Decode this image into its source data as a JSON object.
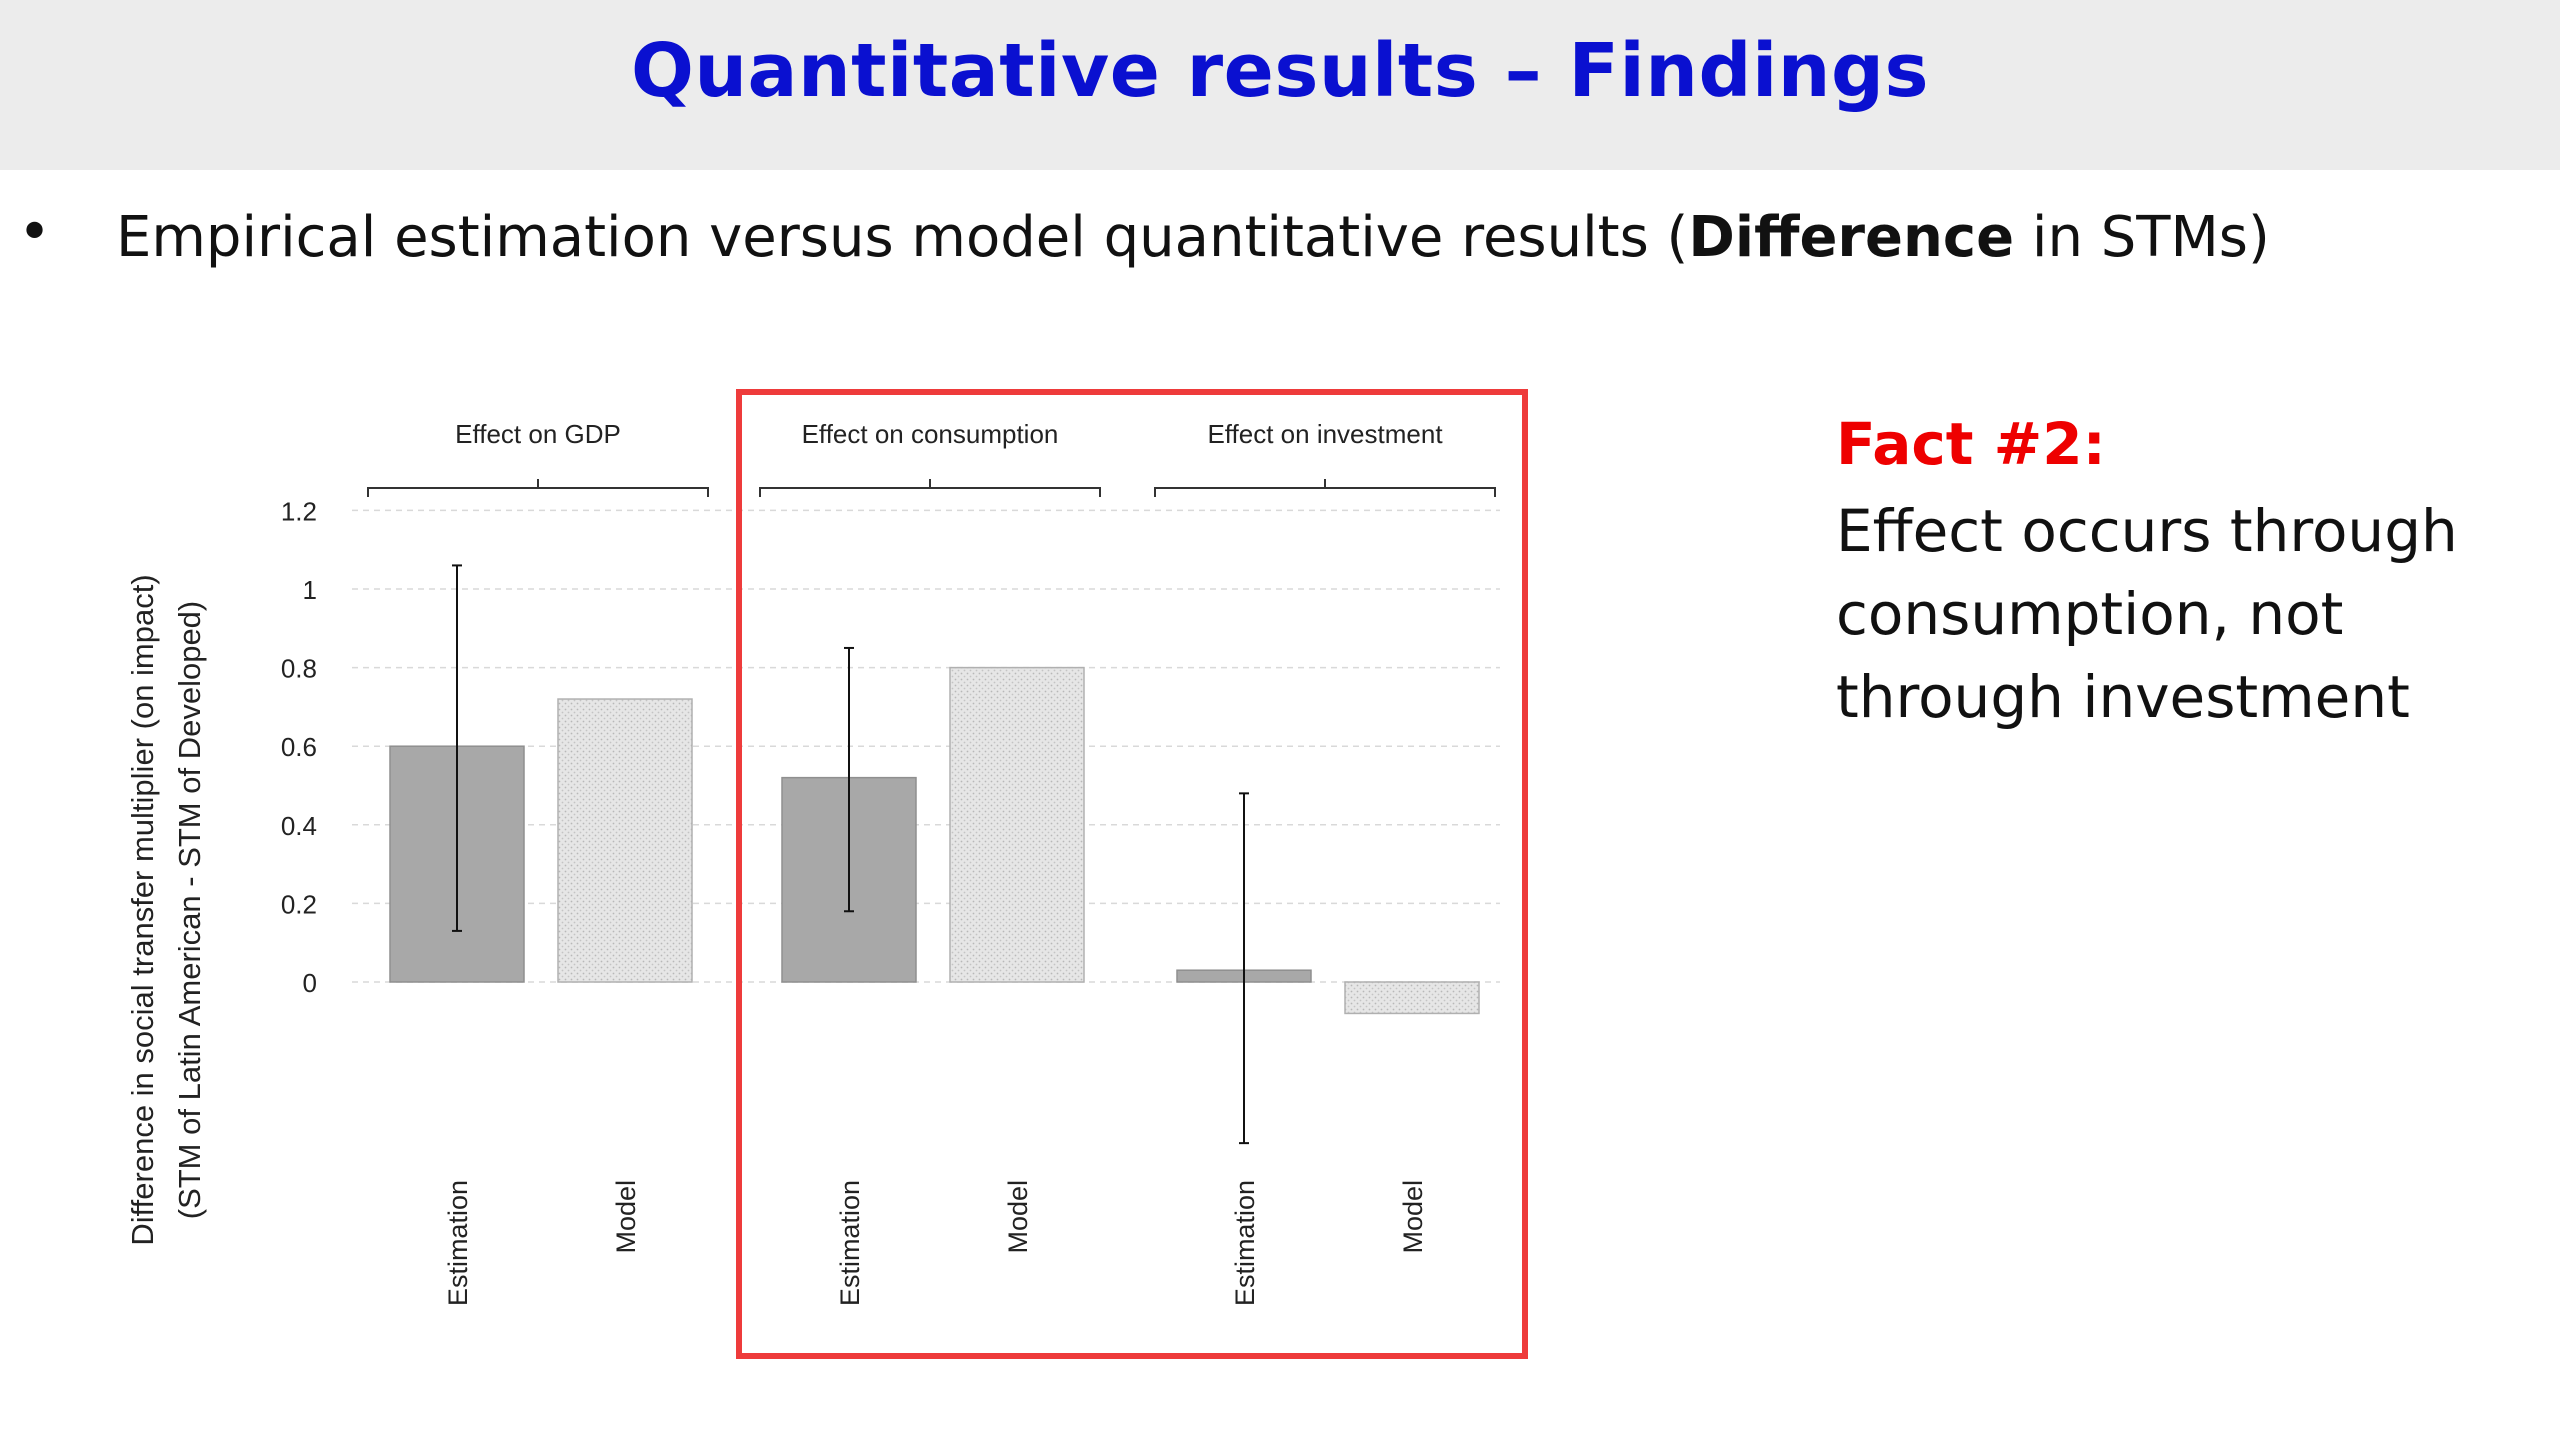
{
  "slide": {
    "title": "Quantitative results – Findings",
    "bullet_symbol": "•",
    "bullet_pre": "Empirical estimation versus model quantitative results (",
    "bullet_bold": "Difference",
    "bullet_post": " in STMs)",
    "fact_title": "Fact #2:",
    "fact_body": "Effect occurs through consumption, not through investment"
  },
  "colors": {
    "title": "#0a10d0",
    "fact_title": "#ee0000",
    "highlight_box": "#ee3b3b",
    "estimation_bar": "#a8a8a8",
    "model_bar": "#e2e2e2"
  },
  "chart_data": {
    "type": "bar",
    "ylabel_line1": "Difference in social transfer multiplier (on impact)",
    "ylabel_line2": "(STM of Latin American  - STM of Developed)",
    "ylim": [
      -0.4,
      1.2
    ],
    "yticks": [
      0,
      0.2,
      0.4,
      0.6,
      0.8,
      1,
      1.2
    ],
    "ytick_labels": [
      "0",
      "0.2",
      "0.4",
      "0.6",
      "0.8",
      "1",
      "1.2"
    ],
    "grid": true,
    "groups": [
      {
        "label": "Effect on GDP",
        "highlighted": false,
        "bars": [
          {
            "label": "Estimation",
            "kind": "estimation",
            "value": 0.6,
            "err_low": 0.13,
            "err_high": 1.06
          },
          {
            "label": "Model",
            "kind": "model",
            "value": 0.72
          }
        ]
      },
      {
        "label": "Effect on consumption",
        "highlighted": true,
        "bars": [
          {
            "label": "Estimation",
            "kind": "estimation",
            "value": 0.52,
            "err_low": 0.18,
            "err_high": 0.85
          },
          {
            "label": "Model",
            "kind": "model",
            "value": 0.8
          }
        ]
      },
      {
        "label": "Effect on investment",
        "highlighted": true,
        "bars": [
          {
            "label": "Estimation",
            "kind": "estimation",
            "value": 0.03,
            "err_low": -0.41,
            "err_high": 0.48
          },
          {
            "label": "Model",
            "kind": "model",
            "value": -0.08
          }
        ]
      }
    ]
  }
}
